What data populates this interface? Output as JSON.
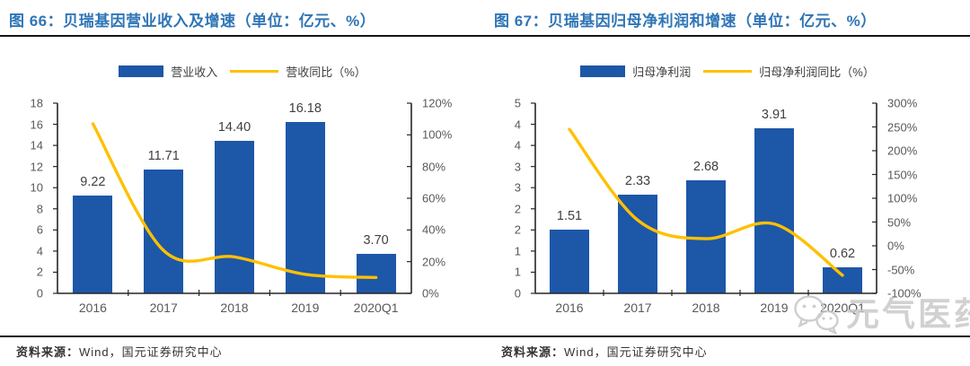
{
  "colors": {
    "bar": "#1d57a8",
    "line": "#ffc000",
    "title": "#2e75b6",
    "axis_text": "#595959",
    "rule": "#141414"
  },
  "figures": [
    {
      "title": "图 66：贝瑞基因营业收入及增速（单位：亿元、%）",
      "source_label": "资料来源：",
      "source": "Wind，国元证券研究中心"
    },
    {
      "title": "图 67：贝瑞基因归母净利润和增速（单位：亿元、%）",
      "source_label": "资料来源：",
      "source": "Wind，国元证券研究中心"
    }
  ],
  "watermark": {
    "icon": "wechat-icon",
    "text": "元气医药"
  },
  "chart_data": [
    {
      "type": "bar",
      "title": "贝瑞基因营业收入及增速（单位：亿元、%）",
      "categories": [
        "2016",
        "2017",
        "2018",
        "2019",
        "2020Q1"
      ],
      "series": [
        {
          "name": "营业收入",
          "type": "bar",
          "axis": "left",
          "values": [
            9.22,
            11.71,
            14.4,
            16.18,
            3.7
          ]
        },
        {
          "name": "营收同比（%）",
          "type": "line",
          "axis": "right",
          "values": [
            107,
            27,
            23,
            12,
            10
          ]
        }
      ],
      "left_axis": {
        "min": 0,
        "max": 18,
        "labels": [
          "0",
          "2",
          "4",
          "6",
          "8",
          "10",
          "12",
          "14",
          "16",
          "18"
        ]
      },
      "right_axis": {
        "min": 0,
        "max": 120,
        "labels": [
          "0%",
          "20%",
          "40%",
          "60%",
          "80%",
          "100%",
          "120%"
        ]
      },
      "grid": false,
      "legend_position": "top"
    },
    {
      "type": "bar",
      "title": "贝瑞基因归母净利润和增速（单位：亿元、%）",
      "categories": [
        "2016",
        "2017",
        "2018",
        "2019",
        "2020Q1"
      ],
      "series": [
        {
          "name": "归母净利润",
          "type": "bar",
          "axis": "left",
          "values": [
            1.51,
            2.33,
            2.68,
            3.91,
            0.62
          ]
        },
        {
          "name": "归母净利润同比（%）",
          "type": "line",
          "axis": "right",
          "values": [
            245,
            54,
            15,
            46,
            -62
          ]
        }
      ],
      "left_axis": {
        "min": 0,
        "max": 4.5,
        "labels": [
          "0",
          "1",
          "1",
          "2",
          "2",
          "3",
          "3",
          "4",
          "4",
          "5"
        ]
      },
      "right_axis": {
        "min": -100,
        "max": 300,
        "labels": [
          "-100%",
          "-50%",
          "0%",
          "50%",
          "100%",
          "150%",
          "200%",
          "250%",
          "300%"
        ]
      },
      "grid": false,
      "legend_position": "top"
    }
  ]
}
